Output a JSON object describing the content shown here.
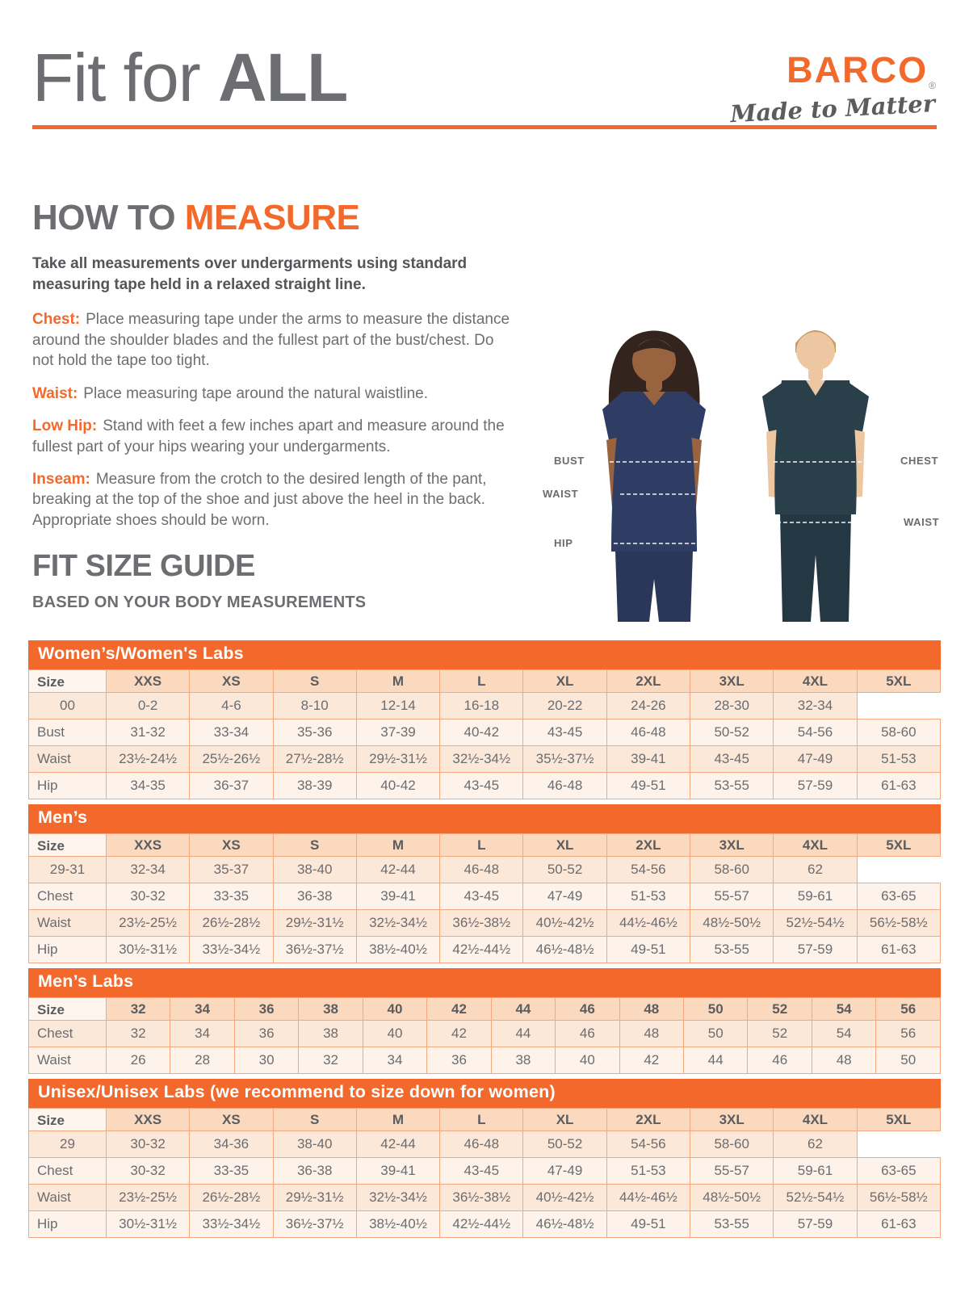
{
  "header": {
    "title_regular": "Fit for ",
    "title_bold": "ALL",
    "brand": "BARCO",
    "brand_reg": "®",
    "brand_tagline": "Made to Matter"
  },
  "how_to_measure": {
    "heading_gray": "HOW TO ",
    "heading_orange": "MEASURE",
    "intro": "Take all measurements over undergarments using standard measuring tape held in a relaxed straight line.",
    "items": [
      {
        "label": "Chest:",
        "text": "Place measuring tape under the arms to measure the distance around the shoulder blades and the fullest part of the bust/chest. Do not hold the tape too tight."
      },
      {
        "label": "Waist:",
        "text": "Place measuring tape around the natural waistline."
      },
      {
        "label": "Low Hip:",
        "text": "Stand with feet a few inches apart and measure around the fullest part of your hips wearing your undergarments."
      },
      {
        "label": "Inseam:",
        "text": "Measure from the crotch to the desired length of the pant, breaking at the top of the shoe and just above the heel in the back. Appropriate shoes should be worn."
      }
    ]
  },
  "figure": {
    "labels": {
      "bust": "BUST",
      "waist_left": "WAIST",
      "hip": "HIP",
      "chest": "CHEST",
      "waist_right": "WAIST"
    }
  },
  "size_guide": {
    "heading": "FIT SIZE GUIDE",
    "subheading": "BASED ON YOUR BODY MEASUREMENTS",
    "tables": [
      {
        "title": "Women’s/Women's Labs",
        "size_label": "Size",
        "col_headers": [
          "XXS",
          "XS",
          "S",
          "M",
          "L",
          "XL",
          "2XL",
          "3XL",
          "4XL",
          "5XL"
        ],
        "subheader": [
          "00",
          "0-2",
          "4-6",
          "8-10",
          "12-14",
          "16-18",
          "20-22",
          "24-26",
          "28-30",
          "32-34"
        ],
        "rows": [
          {
            "label": "Bust",
            "values": [
              "31-32",
              "33-34",
              "35-36",
              "37-39",
              "40-42",
              "43-45",
              "46-48",
              "50-52",
              "54-56",
              "58-60"
            ]
          },
          {
            "label": "Waist",
            "values": [
              "23½-24½",
              "25½-26½",
              "27½-28½",
              "29½-31½",
              "32½-34½",
              "35½-37½",
              "39-41",
              "43-45",
              "47-49",
              "51-53"
            ]
          },
          {
            "label": "Hip",
            "values": [
              "34-35",
              "36-37",
              "38-39",
              "40-42",
              "43-45",
              "46-48",
              "49-51",
              "53-55",
              "57-59",
              "61-63"
            ]
          }
        ]
      },
      {
        "title": "Men’s",
        "size_label": "Size",
        "col_headers": [
          "XXS",
          "XS",
          "S",
          "M",
          "L",
          "XL",
          "2XL",
          "3XL",
          "4XL",
          "5XL"
        ],
        "subheader": [
          "29-31",
          "32-34",
          "35-37",
          "38-40",
          "42-44",
          "46-48",
          "50-52",
          "54-56",
          "58-60",
          "62"
        ],
        "rows": [
          {
            "label": "Chest",
            "values": [
              "30-32",
              "33-35",
              "36-38",
              "39-41",
              "43-45",
              "47-49",
              "51-53",
              "55-57",
              "59-61",
              "63-65"
            ]
          },
          {
            "label": "Waist",
            "values": [
              "23½-25½",
              "26½-28½",
              "29½-31½",
              "32½-34½",
              "36½-38½",
              "40½-42½",
              "44½-46½",
              "48½-50½",
              "52½-54½",
              "56½-58½"
            ]
          },
          {
            "label": "Hip",
            "values": [
              "30½-31½",
              "33½-34½",
              "36½-37½",
              "38½-40½",
              "42½-44½",
              "46½-48½",
              "49-51",
              "53-55",
              "57-59",
              "61-63"
            ]
          }
        ]
      },
      {
        "title": "Men’s Labs",
        "size_label": "Size",
        "col_headers": [
          "32",
          "34",
          "36",
          "38",
          "40",
          "42",
          "44",
          "46",
          "48",
          "50",
          "52",
          "54",
          "56"
        ],
        "subheader": null,
        "rows": [
          {
            "label": "Chest",
            "values": [
              "32",
              "34",
              "36",
              "38",
              "40",
              "42",
              "44",
              "46",
              "48",
              "50",
              "52",
              "54",
              "56"
            ]
          },
          {
            "label": "Waist",
            "values": [
              "26",
              "28",
              "30",
              "32",
              "34",
              "36",
              "38",
              "40",
              "42",
              "44",
              "46",
              "48",
              "50"
            ]
          }
        ]
      },
      {
        "title": "Unisex/Unisex Labs (we recommend to size down for women)",
        "size_label": "Size",
        "col_headers": [
          "XXS",
          "XS",
          "S",
          "M",
          "L",
          "XL",
          "2XL",
          "3XL",
          "4XL",
          "5XL"
        ],
        "subheader": [
          "29",
          "30-32",
          "34-36",
          "38-40",
          "42-44",
          "46-48",
          "50-52",
          "54-56",
          "58-60",
          "62"
        ],
        "rows": [
          {
            "label": "Chest",
            "values": [
              "30-32",
              "33-35",
              "36-38",
              "39-41",
              "43-45",
              "47-49",
              "51-53",
              "55-57",
              "59-61",
              "63-65"
            ]
          },
          {
            "label": "Waist",
            "values": [
              "23½-25½",
              "26½-28½",
              "29½-31½",
              "32½-34½",
              "36½-38½",
              "40½-42½",
              "44½-46½",
              "48½-50½",
              "52½-54½",
              "56½-58½"
            ]
          },
          {
            "label": "Hip",
            "values": [
              "30½-31½",
              "33½-34½",
              "36½-37½",
              "38½-40½",
              "42½-44½",
              "46½-48½",
              "49-51",
              "53-55",
              "57-59",
              "61-63"
            ]
          }
        ]
      }
    ]
  },
  "colors": {
    "accent_orange": "#f2692b",
    "heading_gray": "#6d6e71",
    "band_text": "#ffffff",
    "table_header_peach": "#fad9be",
    "table_row_dark": "#fce8d9",
    "table_row_light": "#fdf3ea",
    "table_border": "#f3a87d"
  }
}
